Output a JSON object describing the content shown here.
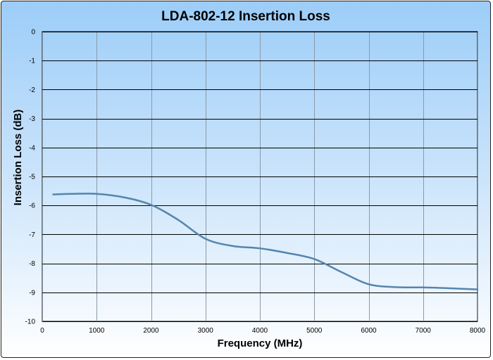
{
  "chart_data": {
    "type": "line",
    "title": "LDA-802-12 Insertion Loss",
    "xlabel": "Frequency (MHz)",
    "ylabel": "Insertion Loss (dB)",
    "xlim": [
      0,
      8000
    ],
    "ylim": [
      -10,
      0
    ],
    "x_ticks": [
      0,
      1000,
      2000,
      3000,
      4000,
      5000,
      6000,
      7000,
      8000
    ],
    "y_ticks": [
      0,
      -1,
      -2,
      -3,
      -4,
      -5,
      -6,
      -7,
      -8,
      -9,
      -10
    ],
    "grid": true,
    "legend": "none",
    "series": [
      {
        "color": "#5585ad",
        "x": [
          200,
          500,
          1000,
          1500,
          2000,
          2500,
          3000,
          3500,
          4000,
          4500,
          5000,
          5500,
          6000,
          6500,
          7000,
          7500,
          8000
        ],
        "y": [
          -5.62,
          -5.6,
          -5.6,
          -5.72,
          -5.98,
          -6.5,
          -7.15,
          -7.4,
          -7.48,
          -7.64,
          -7.85,
          -8.3,
          -8.72,
          -8.82,
          -8.83,
          -8.86,
          -8.9
        ]
      }
    ]
  },
  "colors": {
    "background_top": "#9ccdf8",
    "background_bottom": "#ffffff",
    "grid": "#000000",
    "line": "#5585ad"
  }
}
